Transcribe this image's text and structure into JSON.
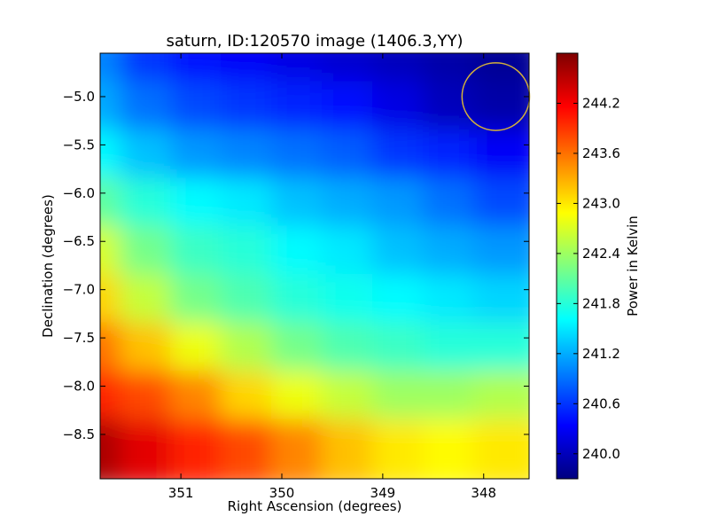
{
  "chart_data": {
    "type": "heatmap",
    "title": "saturn, ID:120570 image (1406.3,YY)",
    "xlabel": "Right Ascension (degrees)",
    "ylabel": "Declination (degrees)",
    "xlim": [
      351.8,
      347.55
    ],
    "ylim": [
      -8.96,
      -4.55
    ],
    "xticks": [
      351,
      350,
      349,
      348
    ],
    "xtick_labels": [
      "351",
      "350",
      "349",
      "348"
    ],
    "yticks": [
      -5.0,
      -5.5,
      -6.0,
      -6.5,
      -7.0,
      -7.5,
      -8.0,
      -8.5
    ],
    "ytick_labels": [
      "−5.0",
      "−5.5",
      "−6.0",
      "−6.5",
      "−7.0",
      "−7.5",
      "−8.0",
      "−8.5"
    ],
    "colorbar": {
      "label": "Power in Kelvin",
      "range": [
        239.7,
        244.8
      ],
      "ticks": [
        240.0,
        240.6,
        241.2,
        241.8,
        242.4,
        243.0,
        243.6,
        244.2
      ],
      "tick_labels": [
        "240.0",
        "240.6",
        "241.2",
        "241.8",
        "242.4",
        "243.0",
        "243.6",
        "244.2"
      ],
      "colormap": "jet"
    },
    "grid": {
      "x": [
        351.75,
        351.25,
        350.75,
        350.25,
        349.75,
        349.25,
        348.75,
        348.25,
        347.75
      ],
      "y": [
        -4.7,
        -5.2,
        -5.7,
        -6.2,
        -6.7,
        -7.2,
        -7.7,
        -8.2,
        -8.7
      ],
      "z": [
        [
          241.0,
          240.6,
          240.4,
          240.3,
          240.2,
          240.1,
          240.0,
          239.9,
          239.8
        ],
        [
          241.2,
          240.9,
          240.7,
          240.6,
          240.5,
          240.4,
          240.2,
          240.0,
          239.9
        ],
        [
          241.6,
          241.3,
          241.1,
          241.0,
          240.9,
          240.8,
          240.6,
          240.5,
          240.3
        ],
        [
          242.1,
          241.8,
          241.6,
          241.5,
          241.3,
          241.2,
          241.1,
          240.9,
          240.7
        ],
        [
          242.7,
          242.2,
          241.9,
          241.8,
          241.6,
          241.5,
          241.3,
          241.2,
          241.1
        ],
        [
          243.1,
          242.6,
          242.2,
          242.0,
          241.8,
          241.7,
          241.6,
          241.5,
          241.4
        ],
        [
          243.6,
          243.2,
          242.8,
          242.5,
          242.2,
          242.0,
          241.9,
          241.8,
          241.8
        ],
        [
          244.0,
          243.8,
          243.5,
          243.1,
          242.8,
          242.6,
          242.4,
          242.4,
          242.5
        ],
        [
          244.6,
          244.3,
          244.0,
          243.8,
          243.5,
          243.2,
          243.0,
          242.9,
          243.0
        ]
      ]
    },
    "annotations": [
      {
        "type": "circle",
        "center": [
          347.88,
          -5.0
        ],
        "radius_deg": 0.35,
        "color": "#d4b13a"
      }
    ]
  }
}
